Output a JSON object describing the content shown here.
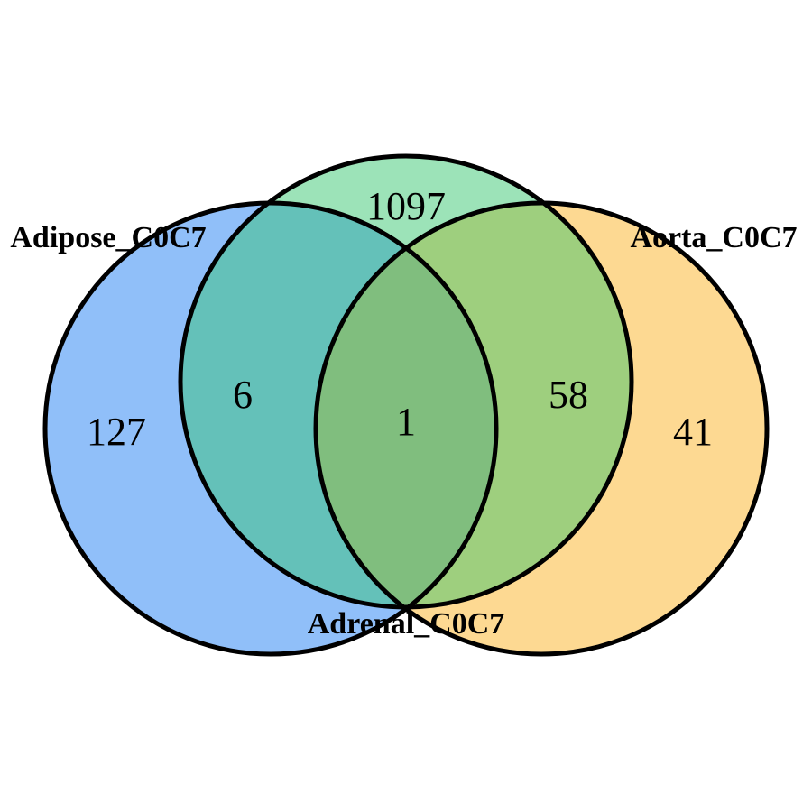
{
  "sets": [
    {
      "id": "adipose",
      "name": "Adipose_C0C7",
      "color": "#90BFF9"
    },
    {
      "id": "adrenal",
      "name": "Adrenal_C0C7",
      "color": "#9CE3B8"
    },
    {
      "id": "aorta",
      "name": "Aorta_C0C7",
      "color": "#FDD992"
    }
  ],
  "region_colors": {
    "adipose_adrenal": "#64C1B9",
    "adrenal_aorta": "#9ECF7E",
    "all_three": "#80BE7E"
  },
  "counts": {
    "adipose_only": "127",
    "adrenal_only": "1097",
    "aorta_only": "41",
    "adipose_adrenal": "6",
    "adrenal_aorta": "58",
    "all_three": "1"
  }
}
